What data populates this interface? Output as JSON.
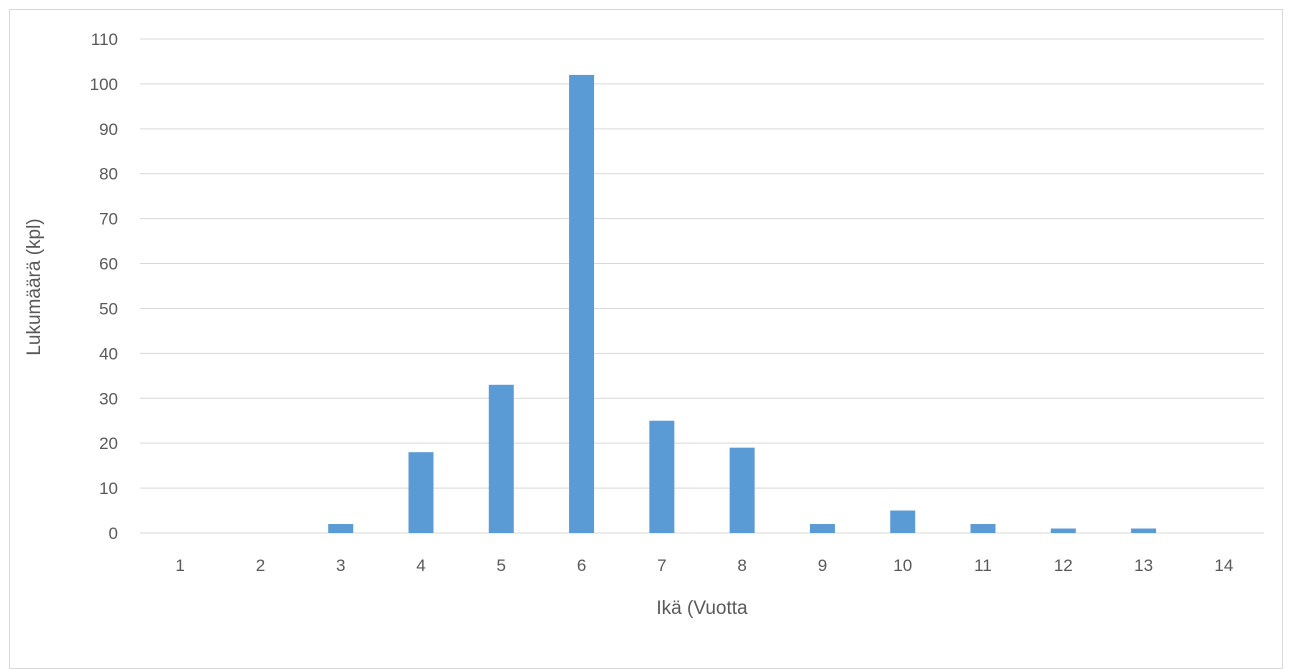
{
  "chart_data": {
    "type": "bar",
    "title": "",
    "xlabel": "Ikä (Vuotta",
    "ylabel": "Lukumäärä (kpl)",
    "categories": [
      "1",
      "2",
      "3",
      "4",
      "5",
      "6",
      "7",
      "8",
      "9",
      "10",
      "11",
      "12",
      "13",
      "14"
    ],
    "values": [
      0,
      0,
      2,
      18,
      33,
      102,
      25,
      19,
      2,
      5,
      2,
      1,
      1,
      0
    ],
    "ylim": [
      0,
      110
    ],
    "yticks": [
      "0",
      "10",
      "20",
      "30",
      "40",
      "50",
      "60",
      "70",
      "80",
      "90",
      "100",
      "110"
    ],
    "grid": true,
    "legend": "none",
    "bar_color": "#5b9bd5",
    "grid_color": "#d9d9d9",
    "text_color": "#595959"
  }
}
